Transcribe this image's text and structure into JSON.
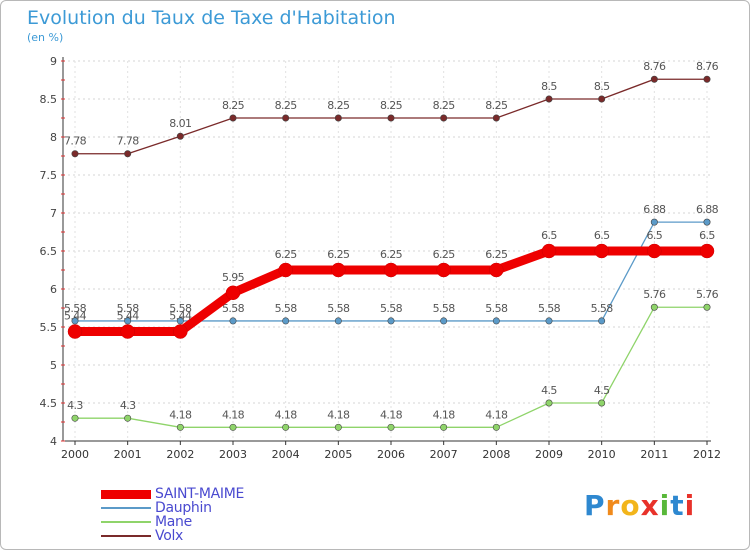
{
  "title": "Evolution du Taux de Taxe d'Habitation",
  "subtitle": "(en %)",
  "logo": {
    "letters": [
      "P",
      "r",
      "o",
      "x",
      "i",
      "t",
      "i"
    ],
    "colors": [
      "#2e88d0",
      "#f08a1c",
      "#f2b51b",
      "#e8322a",
      "#59b83a",
      "#2e88d0",
      "#e8322a"
    ]
  },
  "chart_data": {
    "type": "line",
    "x": [
      "2000",
      "2001",
      "2002",
      "2003",
      "2004",
      "2005",
      "2006",
      "2007",
      "2008",
      "2009",
      "2010",
      "2011",
      "2012"
    ],
    "ylim": [
      4,
      9
    ],
    "yticks": [
      "4",
      "4.5",
      "5",
      "5.5",
      "6",
      "6.5",
      "7",
      "7.5",
      "8",
      "8.5",
      "9"
    ],
    "grid": true,
    "legend_position": "bottom-left",
    "series": [
      {
        "name": "Volx",
        "color": "#7a2a2a",
        "values": [
          7.78,
          7.78,
          8.01,
          8.25,
          8.25,
          8.25,
          8.25,
          8.25,
          8.25,
          8.5,
          8.5,
          8.76,
          8.76
        ],
        "labels": [
          "7.78",
          "7.78",
          "8.01",
          "8.25",
          "8.25",
          "8.25",
          "8.25",
          "8.25",
          "8.25",
          "8.5",
          "8.5",
          "8.76",
          "8.76"
        ]
      },
      {
        "name": "Dauphin",
        "color": "#5b9ac8",
        "values": [
          5.58,
          5.58,
          5.58,
          5.58,
          5.58,
          5.58,
          5.58,
          5.58,
          5.58,
          5.58,
          5.58,
          6.88,
          6.88
        ],
        "labels": [
          "5.58",
          "5.58",
          "5.58",
          "5.58",
          "5.58",
          "5.58",
          "5.58",
          "5.58",
          "5.58",
          "5.58",
          "5.58",
          "6.88",
          "6.88"
        ]
      },
      {
        "name": "Mane",
        "color": "#8fd46a",
        "values": [
          4.3,
          4.3,
          4.18,
          4.18,
          4.18,
          4.18,
          4.18,
          4.18,
          4.18,
          4.5,
          4.5,
          5.76,
          5.76
        ],
        "labels": [
          "4.3",
          "4.3",
          "4.18",
          "4.18",
          "4.18",
          "4.18",
          "4.18",
          "4.18",
          "4.18",
          "4.5",
          "4.5",
          "5.76",
          "5.76"
        ]
      },
      {
        "name": "SAINT-MAIME",
        "color": "#ee0000",
        "values": [
          5.44,
          5.44,
          5.44,
          5.95,
          6.25,
          6.25,
          6.25,
          6.25,
          6.25,
          6.5,
          6.5,
          6.5,
          6.5
        ],
        "labels": [
          "5.44",
          "5.44",
          "5.44",
          "5.95",
          "6.25",
          "6.25",
          "6.25",
          "6.25",
          "6.25",
          "6.5",
          "6.5",
          "6.5",
          "6.5"
        ]
      }
    ],
    "legend_order": [
      "SAINT-MAIME",
      "Dauphin",
      "Mane",
      "Volx"
    ]
  }
}
